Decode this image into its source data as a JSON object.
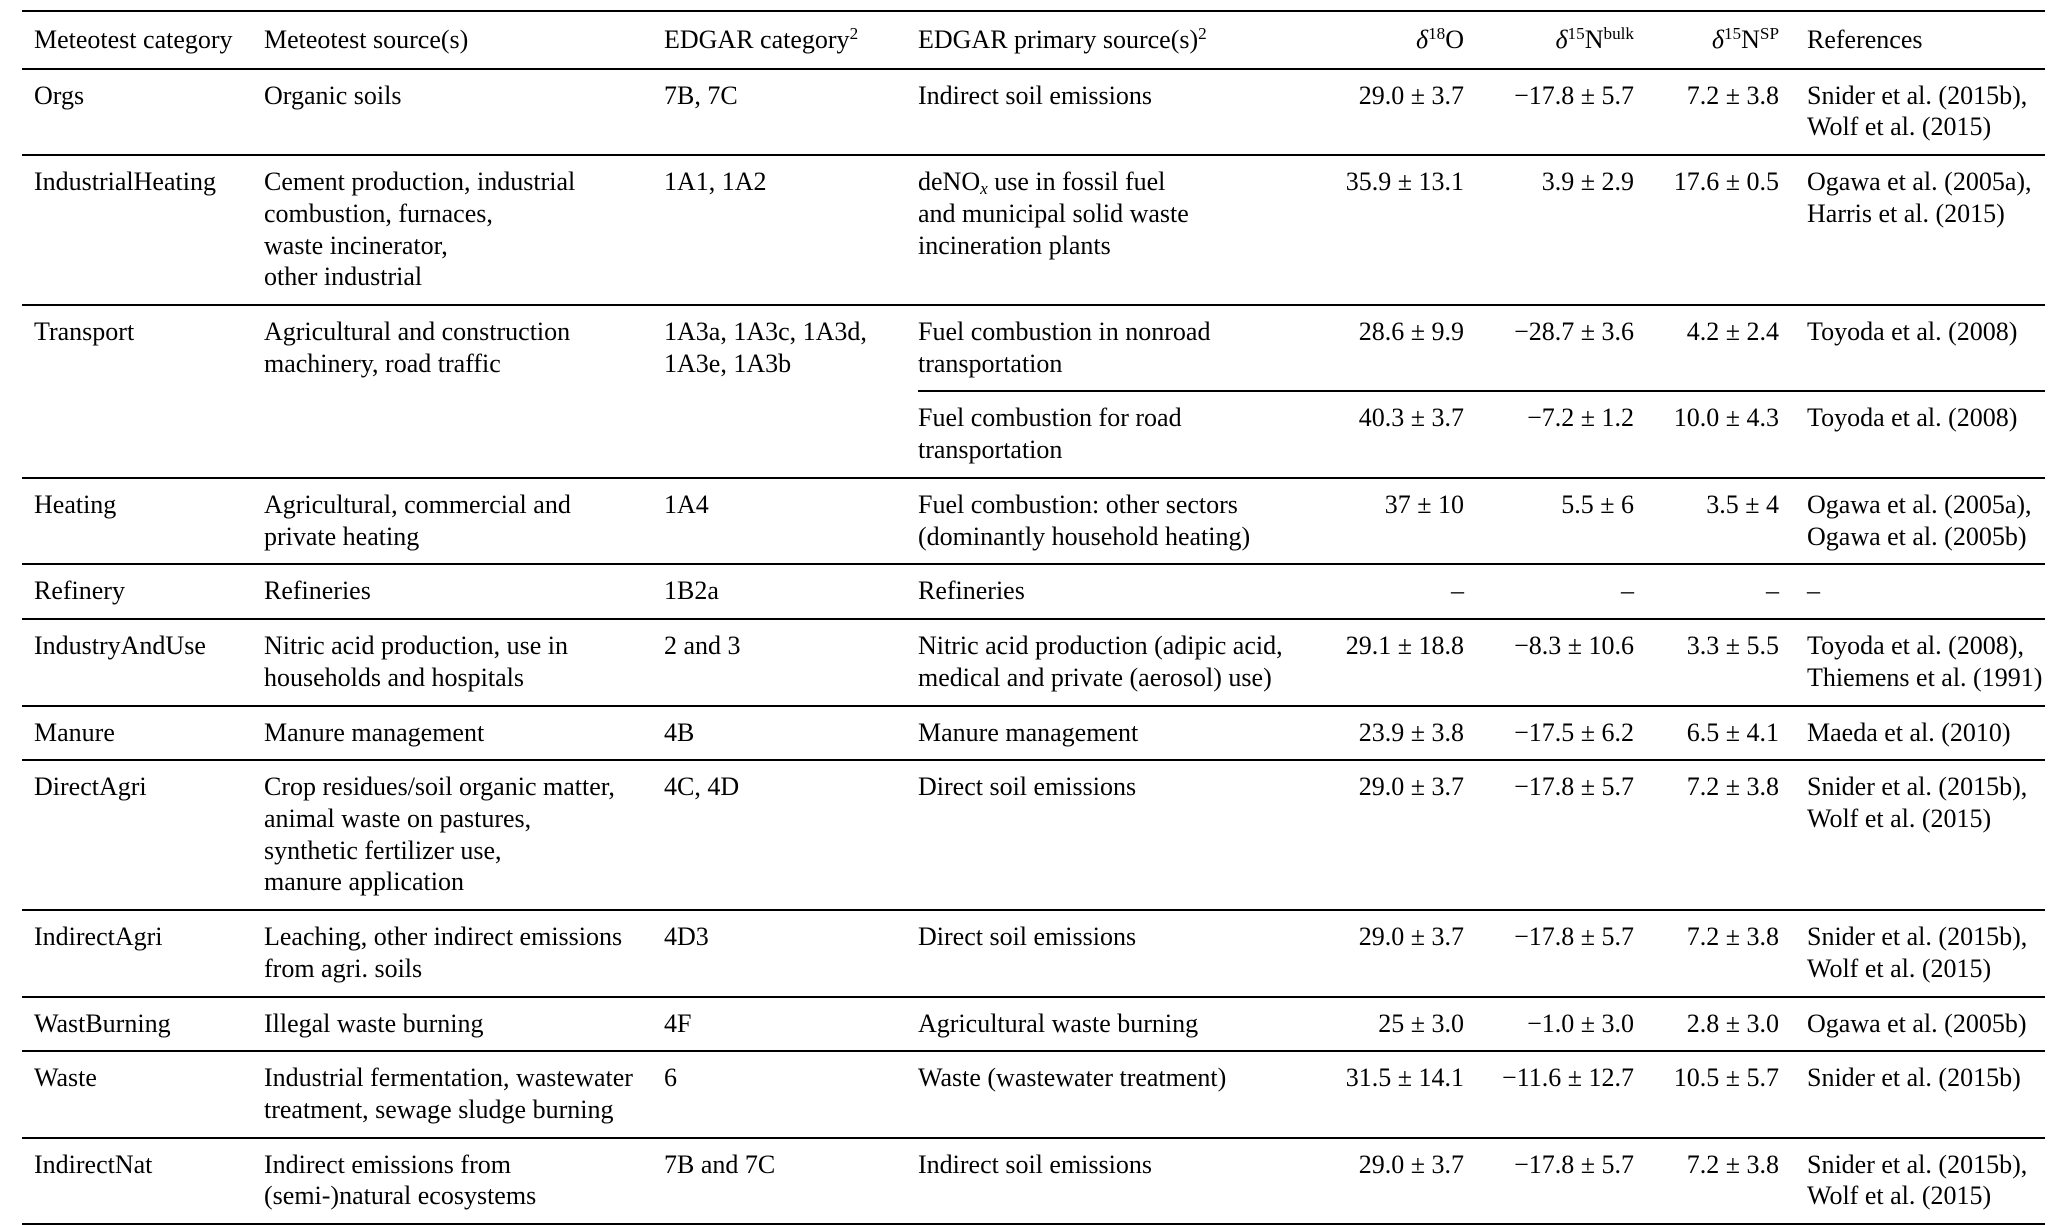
{
  "table": {
    "headers": {
      "meteotest_category": "Meteotest category",
      "meteotest_sources": "Meteotest source(s)",
      "edgar_category": {
        "label": "EDGAR category",
        "sup": "2"
      },
      "edgar_primary": {
        "label": "EDGAR primary source(s)",
        "sup": "2"
      },
      "d18o": {
        "symbol": "δ",
        "mass": "18",
        "element": "O"
      },
      "d15n_bulk": {
        "symbol": "δ",
        "mass": "15",
        "element": "N",
        "sup": "bulk"
      },
      "d15n_sp": {
        "symbol": "δ",
        "mass": "15",
        "element": "N",
        "sup": "SP"
      },
      "references": "References"
    },
    "rows": [
      {
        "category": "Orgs",
        "sources": "Organic soils",
        "edgar_category": "7B, 7C",
        "edgar_primary": "Indirect soil emissions",
        "d18o": "29.0 ± 3.7",
        "d15n_bulk": "−17.8 ± 5.7",
        "d15n_sp": "7.2 ± 3.8",
        "references": "Snider et al. (2015b),\nWolf et al. (2015)"
      },
      {
        "category": "IndustrialHeating",
        "sources": "Cement production, industrial\ncombustion, furnaces,\nwaste incinerator,\nother industrial",
        "edgar_category": "1A1, 1A2",
        "edgar_primary_parts": {
          "pre": "deNO",
          "sub": "x",
          "post": " use in fossil fuel\nand municipal solid waste\nincineration plants"
        },
        "d18o": "35.9 ± 13.1",
        "d15n_bulk": "3.9 ± 2.9",
        "d15n_sp": "17.6 ± 0.5",
        "references": "Ogawa et al. (2005a),\nHarris et al. (2015)"
      },
      {
        "category": "Transport",
        "sources": "Agricultural and construction\nmachinery, road traffic",
        "edgar_category": "1A3a, 1A3c, 1A3d,\n1A3e, 1A3b",
        "edgar_primary": "Fuel combustion in nonroad\ntransportation",
        "d18o": "28.6 ± 9.9",
        "d15n_bulk": "−28.7 ± 3.6",
        "d15n_sp": "4.2 ± 2.4",
        "references": "Toyoda et al. (2008)"
      },
      {
        "edgar_primary": "Fuel combustion for road\ntransportation",
        "d18o": "40.3 ± 3.7",
        "d15n_bulk": "−7.2 ± 1.2",
        "d15n_sp": "10.0 ± 4.3",
        "references": "Toyoda et al. (2008)"
      },
      {
        "category": "Heating",
        "sources": "Agricultural, commercial and\nprivate heating",
        "edgar_category": "1A4",
        "edgar_primary": "Fuel combustion: other sectors\n(dominantly household heating)",
        "d18o": "37 ± 10",
        "d15n_bulk": "5.5 ± 6",
        "d15n_sp": "3.5 ± 4",
        "references": "Ogawa et al. (2005a),\nOgawa et al. (2005b)"
      },
      {
        "category": "Refinery",
        "sources": "Refineries",
        "edgar_category": "1B2a",
        "edgar_primary": "Refineries",
        "d18o": "–",
        "d15n_bulk": "–",
        "d15n_sp": "–",
        "references": "–"
      },
      {
        "category": "IndustryAndUse",
        "sources": "Nitric acid production, use in\nhouseholds and hospitals",
        "edgar_category": "2 and 3",
        "edgar_primary": "Nitric acid production (adipic acid,\nmedical and private (aerosol) use)",
        "d18o": "29.1 ± 18.8",
        "d15n_bulk": "−8.3 ± 10.6",
        "d15n_sp": "3.3 ± 5.5",
        "references": "Toyoda et al. (2008),\nThiemens et al. (1991)"
      },
      {
        "category": "Manure",
        "sources": "Manure management",
        "edgar_category": "4B",
        "edgar_primary": "Manure management",
        "d18o": "23.9 ± 3.8",
        "d15n_bulk": "−17.5 ± 6.2",
        "d15n_sp": "6.5 ± 4.1",
        "references": "Maeda et al. (2010)"
      },
      {
        "category": "DirectAgri",
        "sources": "Crop residues/soil organic matter,\nanimal waste on pastures,\nsynthetic fertilizer use,\nmanure application",
        "edgar_category": "4C, 4D",
        "edgar_primary": "Direct soil emissions",
        "d18o": "29.0 ± 3.7",
        "d15n_bulk": "−17.8 ± 5.7",
        "d15n_sp": "7.2 ± 3.8",
        "references": "Snider et al. (2015b),\nWolf et al. (2015)"
      },
      {
        "category": "IndirectAgri",
        "sources": "Leaching, other indirect emissions\nfrom agri. soils",
        "edgar_category": "4D3",
        "edgar_primary": "Direct soil emissions",
        "d18o": "29.0 ± 3.7",
        "d15n_bulk": "−17.8 ± 5.7",
        "d15n_sp": "7.2 ± 3.8",
        "references": "Snider et al. (2015b),\nWolf et al. (2015)"
      },
      {
        "category": "WastBurning",
        "sources": "Illegal waste burning",
        "edgar_category": "4F",
        "edgar_primary": "Agricultural waste burning",
        "d18o": "25 ± 3.0",
        "d15n_bulk": "−1.0 ± 3.0",
        "d15n_sp": "2.8 ± 3.0",
        "references": "Ogawa et al. (2005b)"
      },
      {
        "category": "Waste",
        "sources": "Industrial fermentation, wastewater\ntreatment, sewage sludge burning",
        "edgar_category": "6",
        "edgar_primary": "Waste (wastewater treatment)",
        "d18o": "31.5 ± 14.1",
        "d15n_bulk": "−11.6 ± 12.7",
        "d15n_sp": "10.5 ± 5.7",
        "references": "Snider et al. (2015b)"
      },
      {
        "category": "IndirectNat",
        "sources": "Indirect emissions from\n(semi-)natural ecosystems",
        "edgar_category": "7B and 7C",
        "edgar_primary": "Indirect soil emissions",
        "d18o": "29.0 ± 3.7",
        "d15n_bulk": "−17.8 ± 5.7",
        "d15n_sp": "7.2 ± 3.8",
        "references": "Snider et al. (2015b),\nWolf et al. (2015)"
      }
    ]
  }
}
